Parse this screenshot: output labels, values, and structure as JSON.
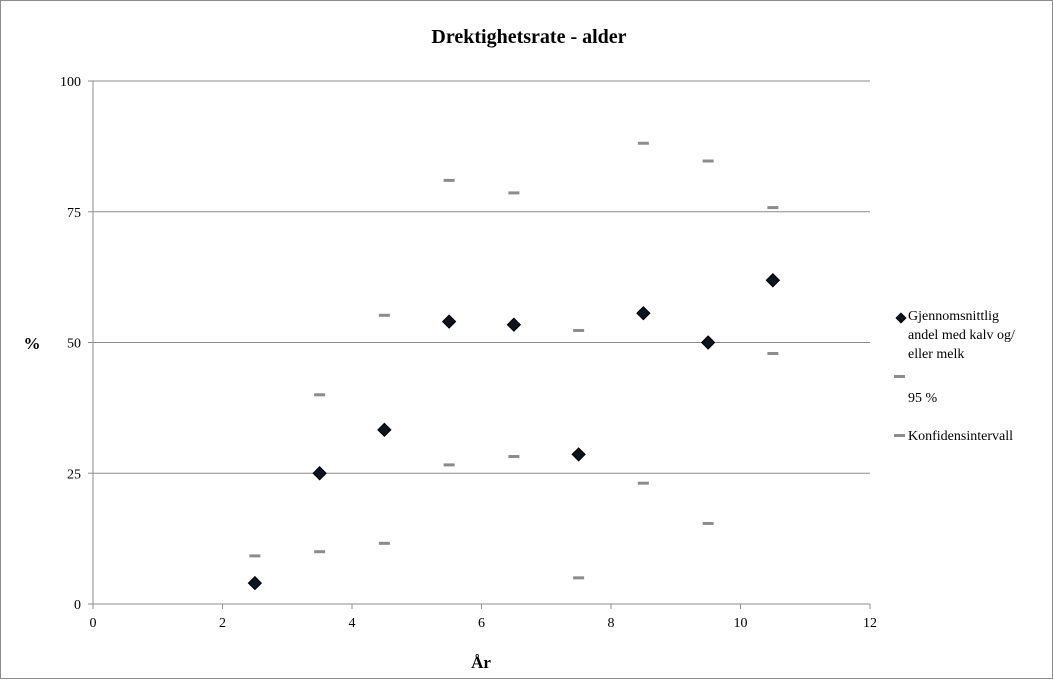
{
  "chart_data": {
    "type": "scatter",
    "title": "Drektighetsrate - alder",
    "xlabel": "År",
    "ylabel": "%",
    "xlim": [
      0,
      12
    ],
    "ylim": [
      0,
      100
    ],
    "xticks": [
      0,
      2,
      4,
      6,
      8,
      10,
      12
    ],
    "yticks": [
      0,
      25,
      50,
      75,
      100
    ],
    "grid": "horizontal",
    "legend_position": "right",
    "series": [
      {
        "name": "Gjennomsnittlig andel med kalv og/ eller melk",
        "marker": "diamond",
        "color": "#0b1420",
        "x": [
          2.5,
          3.5,
          4.5,
          5.5,
          6.5,
          7.5,
          8.5,
          9.5,
          10.5
        ],
        "y": [
          4,
          25,
          33.3,
          54,
          53.4,
          28.6,
          55.6,
          50,
          61.9
        ]
      },
      {
        "name": "95 %",
        "marker": "dash",
        "color": "#8c8c8c",
        "x": [
          2.5,
          3.5,
          4.5,
          5.5,
          6.5,
          7.5,
          8.5,
          9.5,
          10.5
        ],
        "y": [
          9.2,
          40,
          55.2,
          81,
          78.6,
          52.3,
          88.1,
          84.7,
          75.8
        ]
      },
      {
        "name": "Konfidensintervall",
        "marker": "dash",
        "color": "#8c8c8c",
        "x": [
          2.5,
          3.5,
          4.5,
          5.5,
          6.5,
          7.5,
          8.5,
          9.5,
          10.5
        ],
        "y": [
          null,
          10,
          11.6,
          26.6,
          28.2,
          5,
          23.1,
          15.4,
          47.9
        ]
      }
    ]
  }
}
